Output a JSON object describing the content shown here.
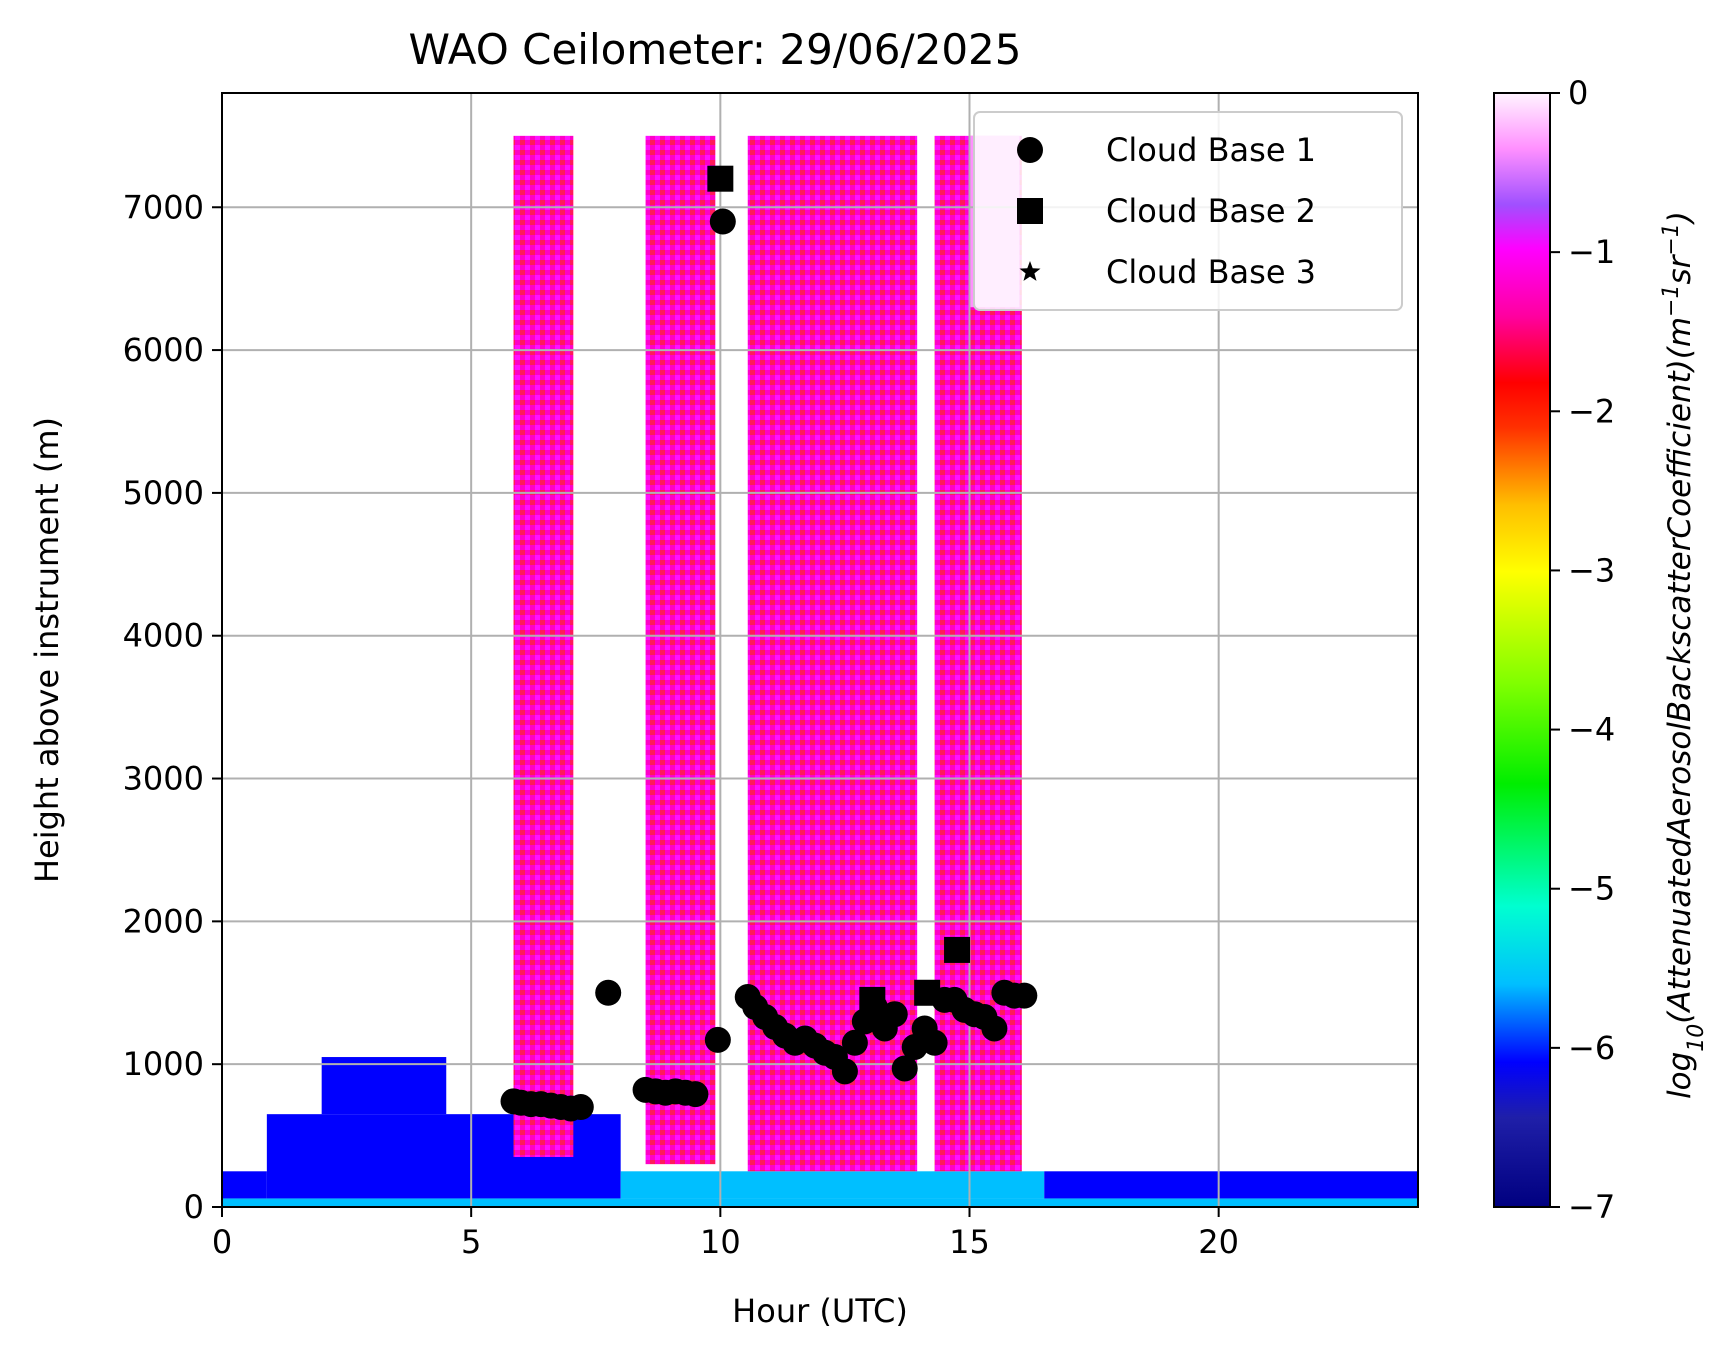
{
  "chart_data": {
    "type": "heatmap",
    "title": "WAO Ceilometer: 29/06/2025",
    "xlabel": "Hour (UTC)",
    "ylabel": "Height above instrument (m)",
    "xlim": [
      0,
      24
    ],
    "ylim": [
      0,
      7800
    ],
    "xticks": [
      0,
      5,
      10,
      15,
      20
    ],
    "xtick_labels": [
      "0",
      "5",
      "10",
      "15",
      "20"
    ],
    "yticks": [
      0,
      1000,
      2000,
      3000,
      4000,
      5000,
      6000,
      7000
    ],
    "ytick_labels": [
      "0",
      "1000",
      "2000",
      "3000",
      "4000",
      "5000",
      "6000",
      "7000"
    ],
    "grid": true,
    "legend_position": "top-right",
    "colorbar": {
      "label_prefix": "log",
      "label_sub": "10",
      "label_main": "(AttenuatedAerosolBackscatterCoefficient)(m",
      "label_exp1": "−1",
      "label_mid": "sr",
      "label_exp2": "−1",
      "label_end": ")",
      "range": [
        -7,
        0
      ],
      "ticks": [
        0,
        -1,
        -2,
        -3,
        -4,
        -5,
        -6,
        -7
      ],
      "tick_labels": [
        "0",
        "−1",
        "−2",
        "−3",
        "−4",
        "−5",
        "−6",
        "−7"
      ],
      "colormap": "gist_ncar",
      "colors": [
        "#000080",
        "#00ff00",
        "#ffff00",
        "#ff0000",
        "#ff00ff",
        "#fff0ff"
      ]
    },
    "backscatter_regions": [
      {
        "x": [
          0.0,
          24.0
        ],
        "y": [
          0,
          60
        ],
        "value": -5.8
      },
      {
        "x": [
          0.9,
          8.0
        ],
        "y": [
          60,
          650
        ],
        "value": -5.9
      },
      {
        "x": [
          0.0,
          0.9
        ],
        "y": [
          60,
          250
        ],
        "value": -6.2
      },
      {
        "x": [
          2.0,
          4.5
        ],
        "y": [
          650,
          1050
        ],
        "value": -6.0
      },
      {
        "x": [
          8.0,
          16.5
        ],
        "y": [
          60,
          250
        ],
        "value": -5.7
      },
      {
        "x": [
          16.5,
          24.0
        ],
        "y": [
          60,
          250
        ],
        "value": -5.9
      },
      {
        "x": [
          5.85,
          7.05
        ],
        "y": [
          350,
          7500
        ],
        "value": -1.5
      },
      {
        "x": [
          8.5,
          9.9
        ],
        "y": [
          300,
          7500
        ],
        "value": -1.5
      },
      {
        "x": [
          10.55,
          13.95
        ],
        "y": [
          250,
          7500
        ],
        "value": -1.4
      },
      {
        "x": [
          14.3,
          16.05
        ],
        "y": [
          250,
          7500
        ],
        "value": -1.4
      },
      {
        "x": [
          15.0,
          16.0
        ],
        "y": [
          6300,
          7500
        ],
        "value": -0.3
      }
    ],
    "series": [
      {
        "name": "Cloud Base 1",
        "marker": "circle",
        "x": [
          5.85,
          6.0,
          6.2,
          6.4,
          6.6,
          6.8,
          7.0,
          7.2,
          7.75,
          8.5,
          8.7,
          8.9,
          9.1,
          9.3,
          9.5,
          9.95,
          10.05,
          10.55,
          10.7,
          10.9,
          11.1,
          11.3,
          11.5,
          11.7,
          11.9,
          12.1,
          12.3,
          12.5,
          12.7,
          12.9,
          13.1,
          13.3,
          13.5,
          13.7,
          13.9,
          14.1,
          14.3,
          14.5,
          14.7,
          14.9,
          15.1,
          15.3,
          15.5,
          15.7,
          15.9,
          16.1
        ],
        "y": [
          740,
          730,
          720,
          720,
          710,
          700,
          690,
          700,
          1500,
          820,
          810,
          800,
          810,
          800,
          790,
          1170,
          6900,
          1470,
          1400,
          1330,
          1260,
          1200,
          1150,
          1180,
          1130,
          1080,
          1050,
          950,
          1150,
          1300,
          1400,
          1250,
          1350,
          970,
          1120,
          1250,
          1150,
          1450,
          1450,
          1380,
          1350,
          1330,
          1250,
          1500,
          1480,
          1480
        ]
      },
      {
        "name": "Cloud Base 2",
        "marker": "square",
        "x": [
          10.0,
          13.05,
          14.15,
          14.75
        ],
        "y": [
          7200,
          1450,
          1500,
          1800
        ]
      },
      {
        "name": "Cloud Base 3",
        "marker": "star",
        "x": [],
        "y": []
      }
    ]
  }
}
